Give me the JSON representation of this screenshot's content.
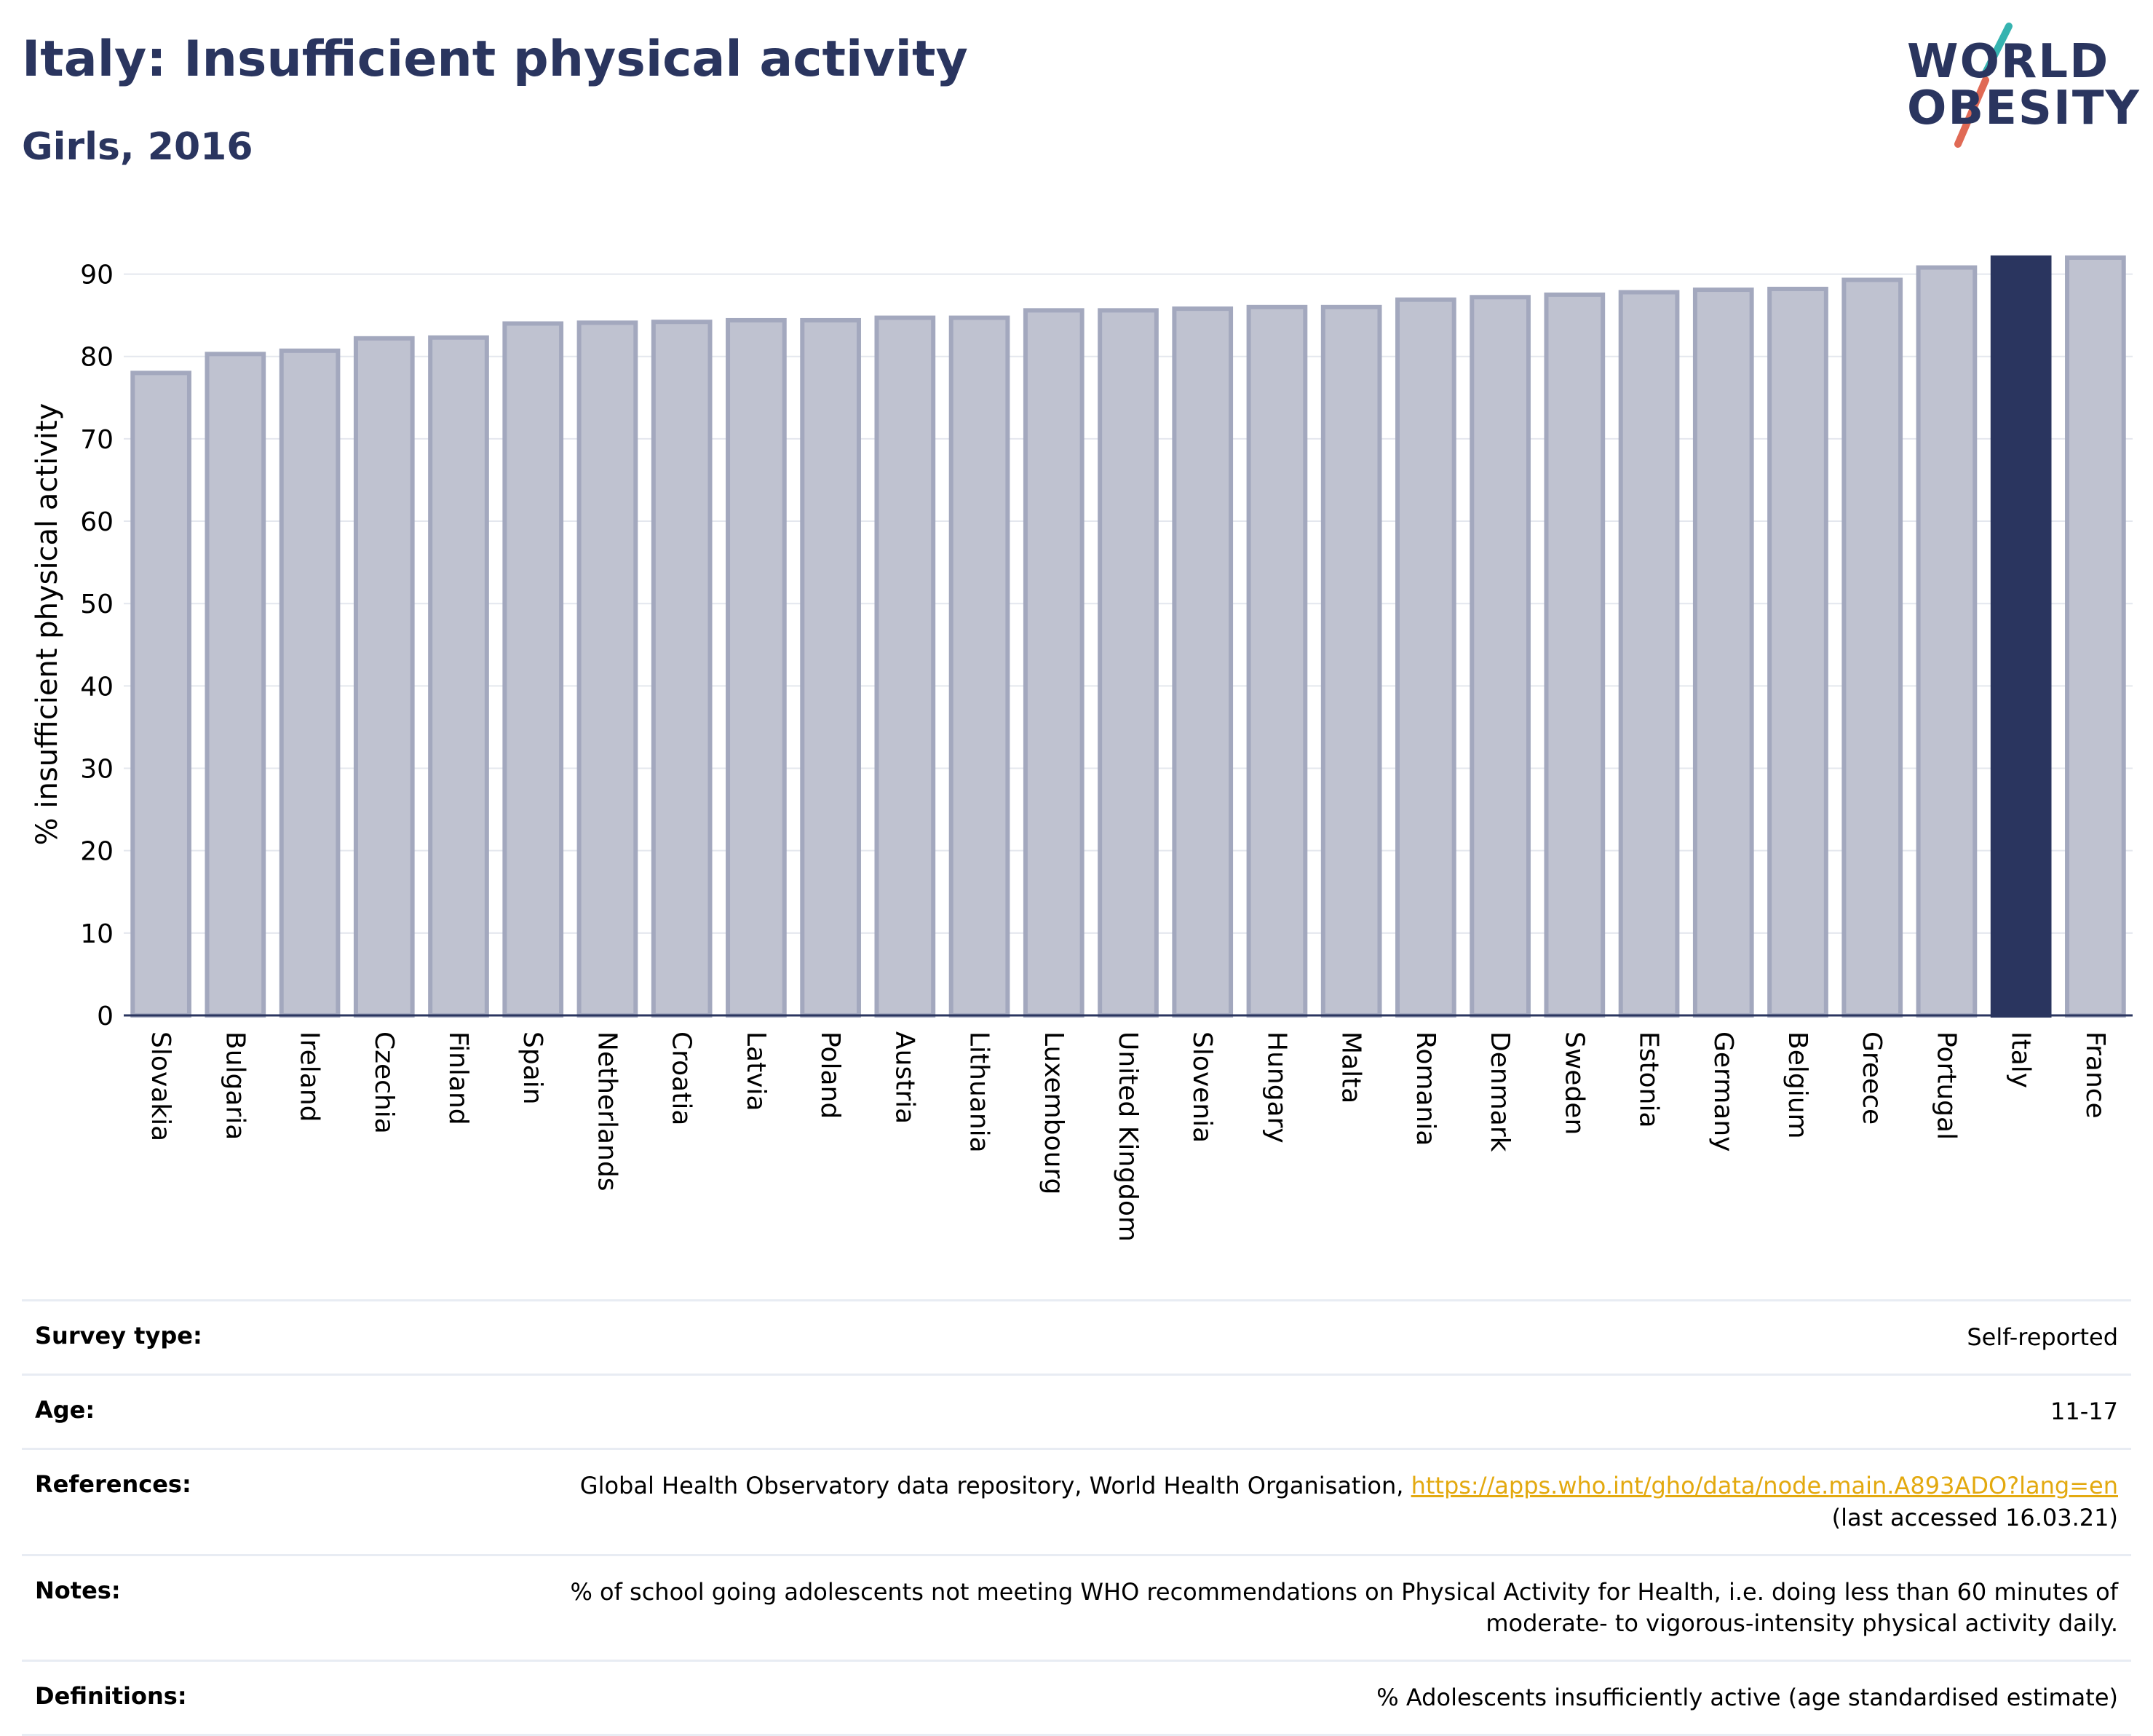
{
  "header": {
    "title": "Italy: Insufficient physical activity",
    "subtitle": "Girls, 2016"
  },
  "logo": {
    "line1": "WORLD",
    "line2": "OBESITY"
  },
  "chart_data": {
    "type": "bar",
    "title": "Italy: Insufficient physical activity",
    "subtitle": "Girls, 2016",
    "ylabel": "% insufficient physical activity",
    "xlabel": "",
    "ylim": [
      0,
      95
    ],
    "yticks": [
      0,
      10,
      20,
      30,
      40,
      50,
      60,
      70,
      80,
      90
    ],
    "grid": true,
    "highlight": "Italy",
    "categories": [
      "Slovakia",
      "Bulgaria",
      "Ireland",
      "Czechia",
      "Finland",
      "Spain",
      "Netherlands",
      "Croatia",
      "Latvia",
      "Poland",
      "Austria",
      "Lithuania",
      "Luxembourg",
      "United Kingdom",
      "Slovenia",
      "Hungary",
      "Malta",
      "Romania",
      "Denmark",
      "Sweden",
      "Estonia",
      "Germany",
      "Belgium",
      "Greece",
      "Portugal",
      "Italy",
      "France"
    ],
    "values": [
      78.0,
      80.3,
      80.7,
      82.2,
      82.3,
      84.0,
      84.1,
      84.2,
      84.4,
      84.4,
      84.7,
      84.7,
      85.6,
      85.6,
      85.8,
      86.0,
      86.0,
      86.9,
      87.2,
      87.5,
      87.8,
      88.1,
      88.2,
      89.3,
      90.8,
      92.0,
      92.0
    ],
    "colors": {
      "default": "#bfc2d0",
      "default_edge": "#a3a8be",
      "highlight": "#2a355f"
    }
  },
  "footer": {
    "rows": [
      {
        "label": "Survey type:",
        "value": "Self-reported"
      },
      {
        "label": "Age:",
        "value": "11-17"
      },
      {
        "label": "References:",
        "value": "Global Health Observatory data repository, World Health Organisation, ",
        "link": "https://apps.who.int/gho/data/node.main.A893ADO?lang=en",
        "value2": "(last accessed 16.03.21)"
      },
      {
        "label": "Notes:",
        "value": "% of school going adolescents not meeting WHO recommendations on Physical Activity for Health, i.e. doing less than 60 minutes of",
        "value2": "moderate- to vigorous-intensity physical activity daily."
      },
      {
        "label": "Definitions:",
        "value": "% Adolescents insufficiently active (age standardised estimate)"
      }
    ]
  }
}
